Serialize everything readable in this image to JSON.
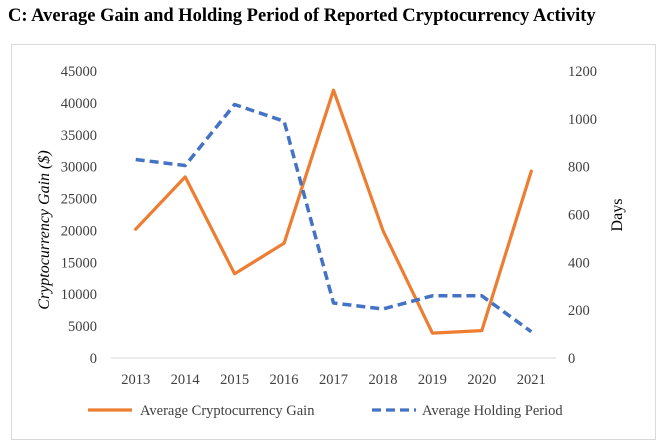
{
  "figure": {
    "title": "C: Average Gain and Holding Period of Reported Cryptocurrency Activity"
  },
  "chart_data": {
    "type": "line",
    "categories": [
      "2013",
      "2014",
      "2015",
      "2016",
      "2017",
      "2018",
      "2019",
      "2020",
      "2021"
    ],
    "ylabel": "Cryptocurrency Gain ($)",
    "y2label": "Days",
    "xlabel": "",
    "ylim": [
      0,
      45000
    ],
    "yticks": [
      0,
      5000,
      10000,
      15000,
      20000,
      25000,
      30000,
      35000,
      40000,
      45000
    ],
    "y2lim": [
      0,
      1200
    ],
    "y2ticks": [
      0,
      200,
      400,
      600,
      800,
      1000,
      1200
    ],
    "grid": false,
    "legend_position": "bottom",
    "series": [
      {
        "name": "Average Cryptocurrency Gain",
        "axis": "left",
        "style": "solid",
        "color": "#ED7D31",
        "values": [
          20200,
          28400,
          13200,
          18000,
          42000,
          20000,
          3900,
          4300,
          29300
        ]
      },
      {
        "name": "Average Holding Period",
        "axis": "right",
        "style": "dashed",
        "color": "#4472C4",
        "values": [
          830,
          805,
          1060,
          990,
          230,
          205,
          260,
          260,
          110
        ]
      }
    ]
  }
}
